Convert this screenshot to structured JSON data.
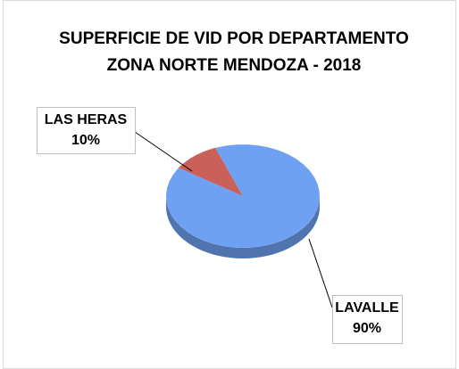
{
  "chart_data": {
    "type": "pie",
    "title": "SUPERFICIE DE VID POR DEPARTAMENTO",
    "subtitle": "ZONA NORTE MENDOZA - 2018",
    "categories": [
      "LAS HERAS",
      "LAVALLE"
    ],
    "values": [
      10,
      90
    ],
    "value_labels": [
      "10%",
      "90%"
    ],
    "colors": [
      "#c9605a",
      "#6ea1f2"
    ]
  }
}
